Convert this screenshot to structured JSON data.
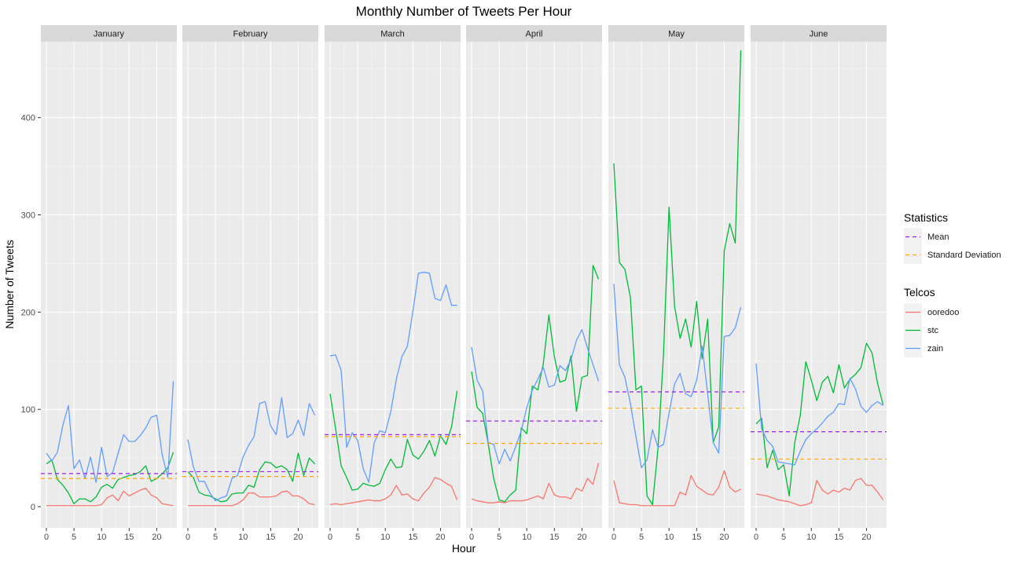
{
  "chart_data": {
    "type": "line",
    "title": "Monthly Number of Tweets Per Hour",
    "xlabel": "Hour",
    "ylabel": "Number of Tweets",
    "xlim": [
      0,
      23
    ],
    "ylim": [
      0,
      470
    ],
    "x_ticks": [
      0,
      5,
      10,
      15,
      20
    ],
    "y_ticks": [
      0,
      100,
      200,
      300,
      400
    ],
    "grid": true,
    "legend_position": "right",
    "colors": {
      "ooredoo": "#F8766D",
      "stc": "#00BA38",
      "zain": "#619CFF",
      "mean": "#A020F0",
      "std": "#FFA500"
    },
    "legend": {
      "statistics_title": "Statistics",
      "statistics": [
        {
          "label": "Mean",
          "key": "mean"
        },
        {
          "label": "Standard Deviation",
          "key": "std"
        }
      ],
      "telcos_title": "Telcos",
      "telcos": [
        {
          "label": "ooredoo",
          "key": "ooredoo"
        },
        {
          "label": "stc",
          "key": "stc"
        },
        {
          "label": "zain",
          "key": "zain"
        }
      ]
    },
    "x": [
      0,
      1,
      2,
      3,
      4,
      5,
      6,
      7,
      8,
      9,
      10,
      11,
      12,
      13,
      14,
      15,
      16,
      17,
      18,
      19,
      20,
      21,
      22,
      23
    ],
    "facets": [
      {
        "name": "January",
        "mean": 34,
        "std": 29,
        "series": [
          {
            "name": "ooredoo",
            "values": [
              1,
              1,
              1,
              1,
              1,
              1,
              1,
              1,
              1,
              1,
              2,
              9,
              12,
              6,
              16,
              11,
              14,
              17,
              19,
              12,
              9,
              3,
              2,
              1
            ]
          },
          {
            "name": "stc",
            "values": [
              44,
              48,
              28,
              22,
              14,
              3,
              8,
              8,
              5,
              10,
              20,
              23,
              19,
              28,
              30,
              32,
              33,
              36,
              42,
              26,
              29,
              34,
              40,
              56
            ]
          },
          {
            "name": "zain",
            "values": [
              55,
              47,
              56,
              84,
              104,
              39,
              48,
              29,
              51,
              25,
              61,
              31,
              35,
              55,
              74,
              67,
              67,
              73,
              81,
              92,
              94,
              53,
              30,
              129
            ]
          }
        ]
      },
      {
        "name": "February",
        "mean": 36,
        "std": 31,
        "series": [
          {
            "name": "ooredoo",
            "values": [
              1,
              1,
              1,
              1,
              1,
              1,
              1,
              1,
              1,
              3,
              7,
              14,
              14,
              10,
              10,
              10,
              11,
              15,
              16,
              11,
              11,
              8,
              3,
              2
            ]
          },
          {
            "name": "stc",
            "values": [
              36,
              30,
              15,
              12,
              11,
              8,
              5,
              6,
              13,
              14,
              14,
              22,
              20,
              38,
              46,
              45,
              40,
              42,
              38,
              26,
              55,
              32,
              50,
              44
            ]
          },
          {
            "name": "zain",
            "values": [
              69,
              41,
              26,
              26,
              14,
              6,
              9,
              11,
              29,
              32,
              51,
              63,
              72,
              106,
              108,
              83,
              74,
              112,
              71,
              75,
              89,
              73,
              106,
              94
            ]
          }
        ]
      },
      {
        "name": "March",
        "mean": 74,
        "std": 72,
        "series": [
          {
            "name": "ooredoo",
            "values": [
              2,
              3,
              2,
              3,
              4,
              5,
              6,
              7,
              6,
              6,
              8,
              12,
              22,
              12,
              13,
              8,
              6,
              14,
              20,
              30,
              28,
              24,
              21,
              7
            ]
          },
          {
            "name": "stc",
            "values": [
              116,
              80,
              42,
              30,
              17,
              18,
              24,
              22,
              21,
              24,
              38,
              49,
              40,
              41,
              69,
              53,
              49,
              57,
              68,
              52,
              73,
              64,
              82,
              119
            ]
          },
          {
            "name": "zain",
            "values": [
              155,
              156,
              140,
              61,
              76,
              68,
              39,
              25,
              66,
              78,
              76,
              98,
              131,
              154,
              165,
              201,
              240,
              241,
              240,
              214,
              212,
              228,
              207,
              207
            ]
          }
        ]
      },
      {
        "name": "April",
        "mean": 88,
        "std": 65,
        "series": [
          {
            "name": "ooredoo",
            "values": [
              8,
              6,
              5,
              4,
              4,
              5,
              4,
              6,
              6,
              6,
              7,
              9,
              11,
              8,
              24,
              12,
              10,
              10,
              8,
              19,
              16,
              29,
              23,
              45
            ]
          },
          {
            "name": "stc",
            "values": [
              139,
              102,
              96,
              65,
              29,
              7,
              5,
              12,
              17,
              81,
              75,
              124,
              120,
              147,
              197,
              154,
              128,
              130,
              155,
              98,
              133,
              135,
              248,
              234
            ]
          },
          {
            "name": "zain",
            "values": [
              164,
              130,
              119,
              66,
              64,
              44,
              59,
              47,
              62,
              78,
              102,
              120,
              131,
              143,
              123,
              125,
              145,
              140,
              151,
              171,
              182,
              163,
              146,
              129
            ]
          }
        ]
      },
      {
        "name": "May",
        "mean": 118,
        "std": 101,
        "series": [
          {
            "name": "ooredoo",
            "values": [
              27,
              4,
              3,
              2,
              2,
              1,
              1,
              1,
              1,
              1,
              1,
              1,
              15,
              12,
              32,
              21,
              17,
              13,
              12,
              20,
              37,
              20,
              15,
              18
            ]
          },
          {
            "name": "stc",
            "values": [
              353,
              251,
              244,
              215,
              120,
              124,
              11,
              2,
              60,
              157,
              308,
              206,
              173,
              193,
              164,
              211,
              152,
              193,
              66,
              82,
              263,
              291,
              271,
              469
            ]
          },
          {
            "name": "zain",
            "values": [
              229,
              146,
              133,
              106,
              72,
              40,
              48,
              79,
              61,
              64,
              96,
              126,
              137,
              116,
              113,
              130,
              165,
              116,
              66,
              55,
              175,
              176,
              184,
              205
            ]
          }
        ]
      },
      {
        "name": "June",
        "mean": 77,
        "std": 49,
        "series": [
          {
            "name": "ooredoo",
            "values": [
              13,
              12,
              11,
              9,
              7,
              6,
              5,
              3,
              1,
              2,
              4,
              27,
              17,
              13,
              17,
              15,
              19,
              17,
              27,
              29,
              22,
              22,
              15,
              7
            ]
          },
          {
            "name": "stc",
            "values": [
              85,
              91,
              40,
              58,
              38,
              43,
              11,
              66,
              94,
              149,
              130,
              109,
              128,
              134,
              117,
              146,
              122,
              131,
              136,
              143,
              168,
              158,
              127,
              105
            ]
          },
          {
            "name": "zain",
            "values": [
              147,
              80,
              68,
              62,
              46,
              45,
              44,
              43,
              57,
              69,
              75,
              80,
              86,
              93,
              97,
              106,
              105,
              132,
              121,
              103,
              97,
              104,
              108,
              104
            ]
          }
        ]
      }
    ]
  }
}
